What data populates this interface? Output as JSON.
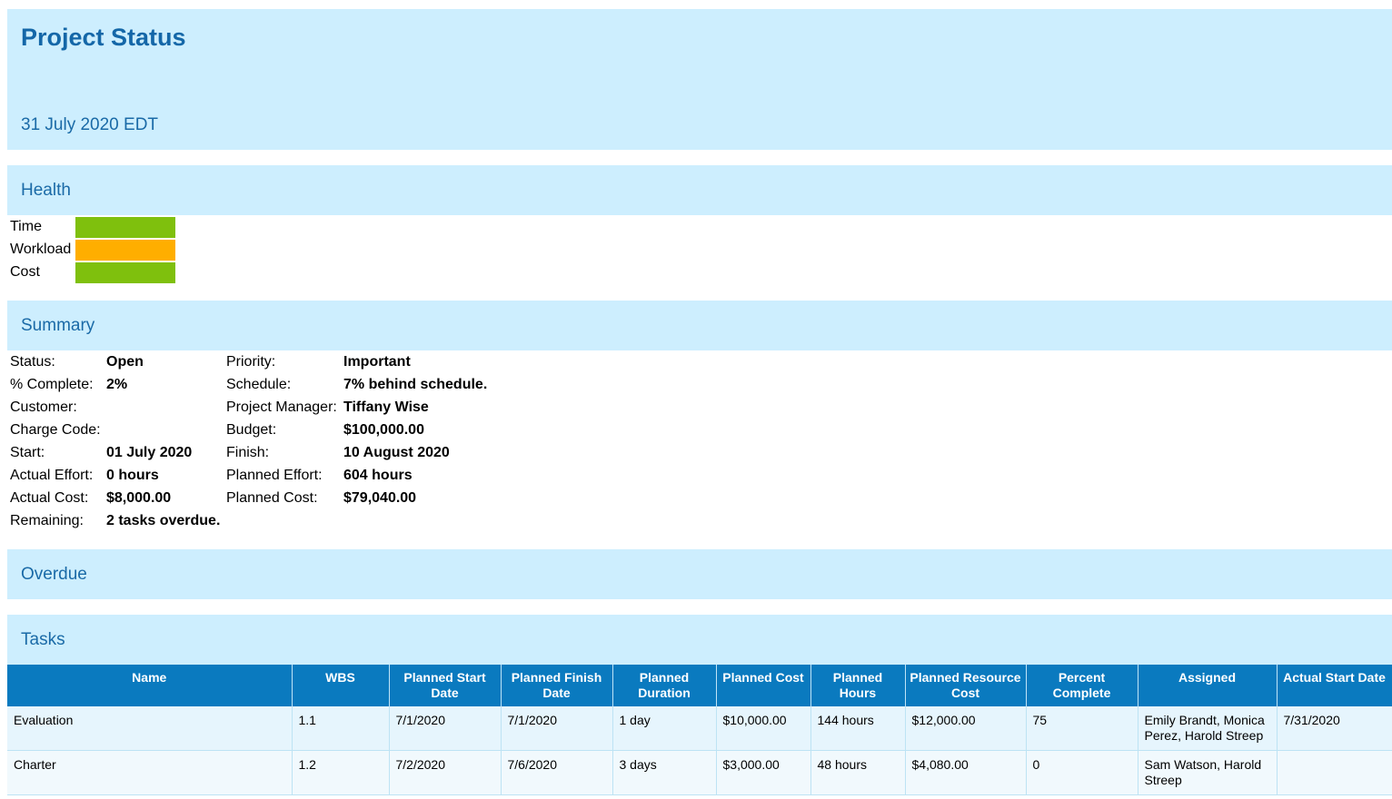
{
  "header": {
    "title": "Project Status",
    "date": "31 July 2020 EDT"
  },
  "sections": {
    "health": "Health",
    "summary": "Summary",
    "overdue": "Overdue",
    "tasks": "Tasks"
  },
  "health": [
    {
      "label": "Time",
      "color": "#7fc00d"
    },
    {
      "label": "Workload",
      "color": "#ffae00"
    },
    {
      "label": "Cost",
      "color": "#7fc00d"
    }
  ],
  "summary": {
    "left": [
      {
        "label": "Status:",
        "value": "Open"
      },
      {
        "label": "% Complete:",
        "value": "2%"
      },
      {
        "label": "Customer:",
        "value": ""
      },
      {
        "label": "Charge Code:",
        "value": ""
      },
      {
        "label": "Start:",
        "value": "01 July 2020"
      },
      {
        "label": "Actual Effort:",
        "value": "0 hours"
      },
      {
        "label": "Actual Cost:",
        "value": "$8,000.00"
      },
      {
        "label": "Remaining:",
        "value": "2 tasks overdue."
      }
    ],
    "right": [
      {
        "label": "Priority:",
        "value": "Important"
      },
      {
        "label": "Schedule:",
        "value": "7% behind schedule."
      },
      {
        "label": "Project Manager:",
        "value": "Tiffany Wise"
      },
      {
        "label": "Budget:",
        "value": "$100,000.00"
      },
      {
        "label": "Finish:",
        "value": "10 August 2020"
      },
      {
        "label": "Planned Effort:",
        "value": "604 hours"
      },
      {
        "label": "Planned Cost:",
        "value": "$79,040.00"
      }
    ]
  },
  "table": {
    "columns": [
      "Name",
      "WBS",
      "Planned Start Date",
      "Planned Finish Date",
      "Planned Duration",
      "Planned Cost",
      "Planned Hours",
      "Planned Resource Cost",
      "Percent Complete",
      "Assigned",
      "Actual Start Date"
    ],
    "rows": [
      [
        "Evaluation",
        "1.1",
        "7/1/2020",
        "7/1/2020",
        "1 day",
        "$10,000.00",
        "144 hours",
        "$12,000.00",
        "75",
        "Emily Brandt, Monica Perez, Harold Streep",
        "7/31/2020"
      ],
      [
        "Charter",
        "1.2",
        "7/2/2020",
        "7/6/2020",
        "3 days",
        "$3,000.00",
        "48 hours",
        "$4,080.00",
        "0",
        "Sam Watson, Harold Streep",
        ""
      ]
    ]
  }
}
